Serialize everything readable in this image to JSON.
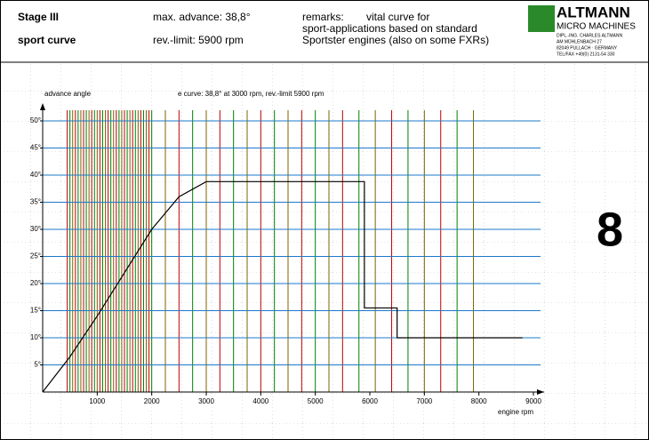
{
  "header": {
    "stage": "Stage III",
    "curve_name": "sport curve",
    "max_advance": "max. advance: 38,8°",
    "rev_limit": "rev.-limit:  5900 rpm",
    "remarks_label": "remarks:",
    "remarks": [
      "vital curve for",
      "sport-applications based on standard",
      "Sportster engines (also on some FXRs)"
    ],
    "logo": {
      "name": "ALTMANN",
      "sub": "MICRO MACHINES",
      "lines": [
        "DIPL.-ING. CHARLES ALTMANN",
        "AM MÜHLENBACH 27",
        "82049 PULLACH · GERMANY",
        "TEL/FAX +49(0) 2131-54 330"
      ]
    },
    "page_number": "8"
  },
  "chart_data": {
    "type": "line",
    "title": "e curve: 38,8° at 3000 rpm, rev.-limit 5900 rpm",
    "y_label": "advance angle",
    "x_label": "engine rpm",
    "x": [
      0,
      500,
      1000,
      1500,
      2000,
      2500,
      3000,
      5900,
      5900,
      6500,
      6500,
      8800
    ],
    "values": [
      0,
      6.5,
      14,
      22,
      30,
      36,
      38.8,
      38.8,
      15.5,
      15.5,
      10,
      10
    ],
    "color": "#000000",
    "xlim": [
      0,
      9000
    ],
    "xticks": [
      1000,
      2000,
      3000,
      4000,
      5000,
      6000,
      7000,
      8000,
      9000
    ],
    "ylim": [
      0,
      50
    ],
    "yticks": [
      {
        "value": 5,
        "label": "5°"
      },
      {
        "value": 10,
        "label": "10°"
      },
      {
        "value": 15,
        "label": "15°"
      },
      {
        "value": 20,
        "label": "20°"
      },
      {
        "value": 25,
        "label": "25°"
      },
      {
        "value": 30,
        "label": "30°"
      },
      {
        "value": 35,
        "label": "35°"
      },
      {
        "value": 40,
        "label": "40°"
      },
      {
        "value": 45,
        "label": "45°"
      },
      {
        "value": 50,
        "label": "50°"
      }
    ],
    "grid": true,
    "grid_color": "#1e78c8",
    "xgrid": [
      450,
      500,
      550,
      600,
      650,
      700,
      750,
      800,
      850,
      900,
      950,
      1000,
      1050,
      1100,
      1150,
      1200,
      1250,
      1300,
      1350,
      1400,
      1450,
      1500,
      1550,
      1600,
      1650,
      1700,
      1750,
      1800,
      1850,
      1900,
      1950,
      2000,
      2250,
      2500,
      2750,
      3000,
      3250,
      3500,
      3750,
      4000,
      4250,
      4500,
      4750,
      5000,
      5250,
      5500,
      5800,
      6100,
      6400,
      6700,
      7000,
      7300,
      7600,
      7900
    ],
    "xgrid_colors": [
      "#c00000",
      "#008000",
      "#806000"
    ]
  }
}
